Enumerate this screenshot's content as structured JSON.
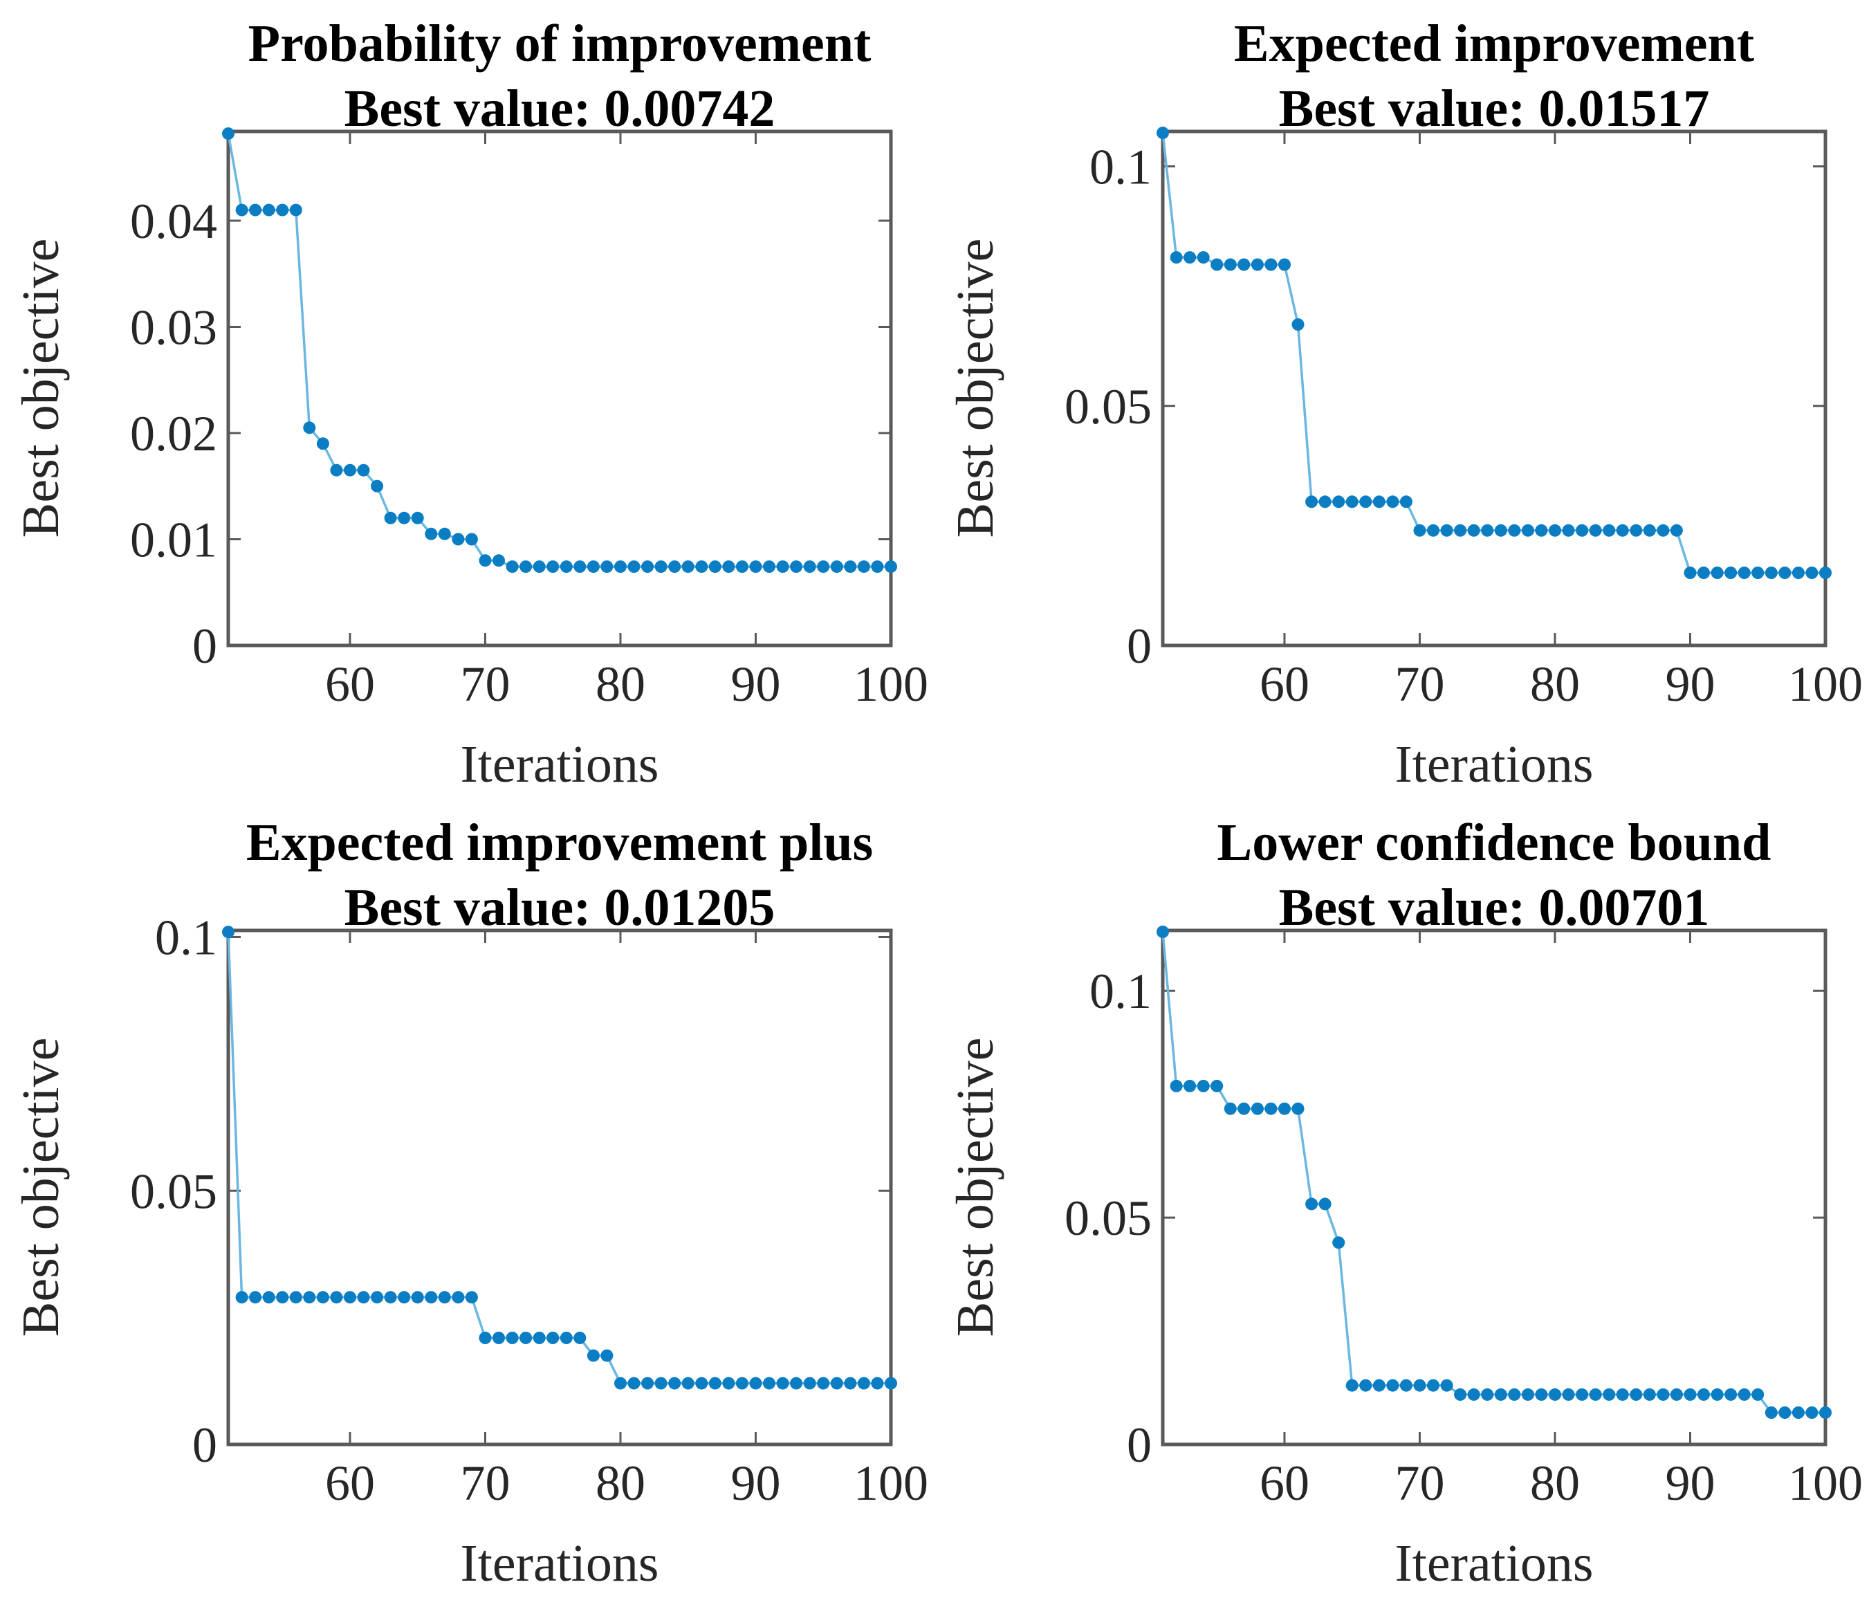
{
  "figure": {
    "description": "2x2 grid of Bayesian optimization convergence plots comparing acquisition functions",
    "background": "#ffffff",
    "colors": {
      "marker": "#0a7dc3",
      "line": "#6ab7e2",
      "spine": "#595959",
      "tick": "#595959",
      "tick_label": "#262626",
      "title": "#000000"
    }
  },
  "chart_data": [
    {
      "type": "line",
      "title": "Probability of improvement",
      "subtitle": "Best value: 0.00742",
      "best_value": 0.00742,
      "xlabel": "Iterations",
      "ylabel": "Best objective",
      "xlim": [
        51,
        100
      ],
      "ylim": [
        0,
        0.0484
      ],
      "x_ticks": [
        60,
        70,
        80,
        90,
        100
      ],
      "x_tick_labels": [
        "60",
        "70",
        "80",
        "90",
        "100"
      ],
      "y_ticks": [
        0,
        0.01,
        0.02,
        0.03,
        0.04
      ],
      "y_tick_labels": [
        "0",
        "0.01",
        "0.02",
        "0.03",
        "0.04"
      ],
      "grid": false,
      "legend": null,
      "points": [
        [
          51,
          0.0482
        ],
        [
          52,
          0.041
        ],
        [
          53,
          0.041
        ],
        [
          54,
          0.041
        ],
        [
          55,
          0.041
        ],
        [
          56,
          0.041
        ],
        [
          57,
          0.0205
        ],
        [
          58,
          0.019
        ],
        [
          59,
          0.0165
        ],
        [
          60,
          0.0165
        ],
        [
          61,
          0.0165
        ],
        [
          62,
          0.015
        ],
        [
          63,
          0.012
        ],
        [
          64,
          0.012
        ],
        [
          65,
          0.012
        ],
        [
          66,
          0.0105
        ],
        [
          67,
          0.0105
        ],
        [
          68,
          0.01
        ],
        [
          69,
          0.01
        ],
        [
          70,
          0.008
        ],
        [
          71,
          0.008
        ],
        [
          72,
          0.00742
        ],
        [
          73,
          0.00742
        ],
        [
          74,
          0.00742
        ],
        [
          75,
          0.00742
        ],
        [
          76,
          0.00742
        ],
        [
          77,
          0.00742
        ],
        [
          78,
          0.00742
        ],
        [
          79,
          0.00742
        ],
        [
          80,
          0.00742
        ],
        [
          81,
          0.00742
        ],
        [
          82,
          0.00742
        ],
        [
          83,
          0.00742
        ],
        [
          84,
          0.00742
        ],
        [
          85,
          0.00742
        ],
        [
          86,
          0.00742
        ],
        [
          87,
          0.00742
        ],
        [
          88,
          0.00742
        ],
        [
          89,
          0.00742
        ],
        [
          90,
          0.00742
        ],
        [
          91,
          0.00742
        ],
        [
          92,
          0.00742
        ],
        [
          93,
          0.00742
        ],
        [
          94,
          0.00742
        ],
        [
          95,
          0.00742
        ],
        [
          96,
          0.00742
        ],
        [
          97,
          0.00742
        ],
        [
          98,
          0.00742
        ],
        [
          99,
          0.00742
        ],
        [
          100,
          0.00742
        ]
      ]
    },
    {
      "type": "line",
      "title": "Expected improvement",
      "subtitle": "Best value: 0.01517",
      "best_value": 0.01517,
      "xlabel": "Iterations",
      "ylabel": "Best objective",
      "xlim": [
        51,
        100
      ],
      "ylim": [
        0,
        0.1073
      ],
      "x_ticks": [
        60,
        70,
        80,
        90,
        100
      ],
      "x_tick_labels": [
        "60",
        "70",
        "80",
        "90",
        "100"
      ],
      "y_ticks": [
        0,
        0.05,
        0.1
      ],
      "y_tick_labels": [
        "0",
        "0.05",
        "0.1"
      ],
      "grid": false,
      "legend": null,
      "points": [
        [
          51,
          0.107
        ],
        [
          52,
          0.081
        ],
        [
          53,
          0.081
        ],
        [
          54,
          0.081
        ],
        [
          55,
          0.0795
        ],
        [
          56,
          0.0795
        ],
        [
          57,
          0.0795
        ],
        [
          58,
          0.0795
        ],
        [
          59,
          0.0795
        ],
        [
          60,
          0.0795
        ],
        [
          61,
          0.067
        ],
        [
          62,
          0.03
        ],
        [
          63,
          0.03
        ],
        [
          64,
          0.03
        ],
        [
          65,
          0.03
        ],
        [
          66,
          0.03
        ],
        [
          67,
          0.03
        ],
        [
          68,
          0.03
        ],
        [
          69,
          0.03
        ],
        [
          70,
          0.024
        ],
        [
          71,
          0.024
        ],
        [
          72,
          0.024
        ],
        [
          73,
          0.024
        ],
        [
          74,
          0.024
        ],
        [
          75,
          0.024
        ],
        [
          76,
          0.024
        ],
        [
          77,
          0.024
        ],
        [
          78,
          0.024
        ],
        [
          79,
          0.024
        ],
        [
          80,
          0.024
        ],
        [
          81,
          0.024
        ],
        [
          82,
          0.024
        ],
        [
          83,
          0.024
        ],
        [
          84,
          0.024
        ],
        [
          85,
          0.024
        ],
        [
          86,
          0.024
        ],
        [
          87,
          0.024
        ],
        [
          88,
          0.024
        ],
        [
          89,
          0.024
        ],
        [
          90,
          0.01517
        ],
        [
          91,
          0.01517
        ],
        [
          92,
          0.01517
        ],
        [
          93,
          0.01517
        ],
        [
          94,
          0.01517
        ],
        [
          95,
          0.01517
        ],
        [
          96,
          0.01517
        ],
        [
          97,
          0.01517
        ],
        [
          98,
          0.01517
        ],
        [
          99,
          0.01517
        ],
        [
          100,
          0.01517
        ]
      ]
    },
    {
      "type": "line",
      "title": "Expected improvement plus",
      "subtitle": "Best value: 0.01205",
      "best_value": 0.01205,
      "xlabel": "Iterations",
      "ylabel": "Best objective",
      "xlim": [
        51,
        100
      ],
      "ylim": [
        0,
        0.1013
      ],
      "x_ticks": [
        60,
        70,
        80,
        90,
        100
      ],
      "x_tick_labels": [
        "60",
        "70",
        "80",
        "90",
        "100"
      ],
      "y_ticks": [
        0,
        0.05,
        0.1
      ],
      "y_tick_labels": [
        "0",
        "0.05",
        "0.1"
      ],
      "grid": false,
      "legend": null,
      "points": [
        [
          51,
          0.101
        ],
        [
          52,
          0.029
        ],
        [
          53,
          0.029
        ],
        [
          54,
          0.029
        ],
        [
          55,
          0.029
        ],
        [
          56,
          0.029
        ],
        [
          57,
          0.029
        ],
        [
          58,
          0.029
        ],
        [
          59,
          0.029
        ],
        [
          60,
          0.029
        ],
        [
          61,
          0.029
        ],
        [
          62,
          0.029
        ],
        [
          63,
          0.029
        ],
        [
          64,
          0.029
        ],
        [
          65,
          0.029
        ],
        [
          66,
          0.029
        ],
        [
          67,
          0.029
        ],
        [
          68,
          0.029
        ],
        [
          69,
          0.029
        ],
        [
          70,
          0.021
        ],
        [
          71,
          0.021
        ],
        [
          72,
          0.021
        ],
        [
          73,
          0.021
        ],
        [
          74,
          0.021
        ],
        [
          75,
          0.021
        ],
        [
          76,
          0.021
        ],
        [
          77,
          0.021
        ],
        [
          78,
          0.0175
        ],
        [
          79,
          0.0175
        ],
        [
          80,
          0.01205
        ],
        [
          81,
          0.01205
        ],
        [
          82,
          0.01205
        ],
        [
          83,
          0.01205
        ],
        [
          84,
          0.01205
        ],
        [
          85,
          0.01205
        ],
        [
          86,
          0.01205
        ],
        [
          87,
          0.01205
        ],
        [
          88,
          0.01205
        ],
        [
          89,
          0.01205
        ],
        [
          90,
          0.01205
        ],
        [
          91,
          0.01205
        ],
        [
          92,
          0.01205
        ],
        [
          93,
          0.01205
        ],
        [
          94,
          0.01205
        ],
        [
          95,
          0.01205
        ],
        [
          96,
          0.01205
        ],
        [
          97,
          0.01205
        ],
        [
          98,
          0.01205
        ],
        [
          99,
          0.01205
        ],
        [
          100,
          0.01205
        ]
      ]
    },
    {
      "type": "line",
      "title": "Lower confidence bound",
      "subtitle": "Best value: 0.00701",
      "best_value": 0.00701,
      "xlabel": "Iterations",
      "ylabel": "Best objective",
      "xlim": [
        51,
        100
      ],
      "ylim": [
        0,
        0.1133
      ],
      "x_ticks": [
        60,
        70,
        80,
        90,
        100
      ],
      "x_tick_labels": [
        "60",
        "70",
        "80",
        "90",
        "100"
      ],
      "y_ticks": [
        0,
        0.05,
        0.1
      ],
      "y_tick_labels": [
        "0",
        "0.05",
        "0.1"
      ],
      "grid": false,
      "legend": null,
      "points": [
        [
          51,
          0.113
        ],
        [
          52,
          0.079
        ],
        [
          53,
          0.079
        ],
        [
          54,
          0.079
        ],
        [
          55,
          0.079
        ],
        [
          56,
          0.074
        ],
        [
          57,
          0.074
        ],
        [
          58,
          0.074
        ],
        [
          59,
          0.074
        ],
        [
          60,
          0.074
        ],
        [
          61,
          0.074
        ],
        [
          62,
          0.053
        ],
        [
          63,
          0.053
        ],
        [
          64,
          0.0445
        ],
        [
          65,
          0.013
        ],
        [
          66,
          0.013
        ],
        [
          67,
          0.013
        ],
        [
          68,
          0.013
        ],
        [
          69,
          0.013
        ],
        [
          70,
          0.013
        ],
        [
          71,
          0.013
        ],
        [
          72,
          0.013
        ],
        [
          73,
          0.011
        ],
        [
          74,
          0.011
        ],
        [
          75,
          0.011
        ],
        [
          76,
          0.011
        ],
        [
          77,
          0.011
        ],
        [
          78,
          0.011
        ],
        [
          79,
          0.011
        ],
        [
          80,
          0.011
        ],
        [
          81,
          0.011
        ],
        [
          82,
          0.011
        ],
        [
          83,
          0.011
        ],
        [
          84,
          0.011
        ],
        [
          85,
          0.011
        ],
        [
          86,
          0.011
        ],
        [
          87,
          0.011
        ],
        [
          88,
          0.011
        ],
        [
          89,
          0.011
        ],
        [
          90,
          0.011
        ],
        [
          91,
          0.011
        ],
        [
          92,
          0.011
        ],
        [
          93,
          0.011
        ],
        [
          94,
          0.011
        ],
        [
          95,
          0.011
        ],
        [
          96,
          0.00701
        ],
        [
          97,
          0.00701
        ],
        [
          98,
          0.00701
        ],
        [
          99,
          0.00701
        ],
        [
          100,
          0.00701
        ]
      ]
    }
  ]
}
